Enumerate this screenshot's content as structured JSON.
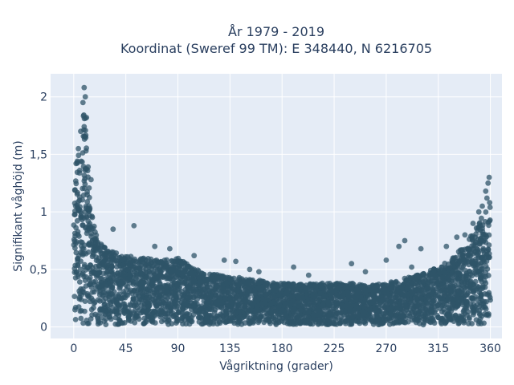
{
  "chart_data": {
    "type": "scatter",
    "title_line1": "År 1979 - 2019",
    "title_line2": "Koordinat (Sweref 99 TM): E 348440, N 6216705",
    "xlabel": "Vågriktning (grader)",
    "ylabel": "Signifikant våghöjd (m)",
    "xlim": [
      -20,
      370
    ],
    "ylim": [
      -0.1,
      2.2
    ],
    "x_ticks": [
      0,
      45,
      90,
      135,
      180,
      225,
      270,
      315,
      360
    ],
    "x_tick_labels": [
      "0",
      "45",
      "90",
      "135",
      "180",
      "225",
      "270",
      "315",
      "360"
    ],
    "y_ticks": [
      0,
      0.5,
      1,
      1.5,
      2
    ],
    "y_tick_labels": [
      "0",
      "0,5",
      "1",
      "1,5",
      "2"
    ],
    "grid": true,
    "plot_bgcolor": "#e5ecf6",
    "marker_color": "#2f5468",
    "upper_envelope": {
      "x": [
        0,
        3,
        6,
        8,
        10,
        12,
        15,
        20,
        25,
        30,
        40,
        45,
        60,
        75,
        90,
        105,
        120,
        135,
        150,
        165,
        180,
        195,
        210,
        225,
        240,
        255,
        270,
        285,
        300,
        315,
        325,
        330,
        335,
        340,
        345,
        350,
        355,
        358,
        360
      ],
      "y": [
        1.35,
        1.5,
        1.7,
        1.85,
        1.9,
        1.45,
        1.0,
        0.78,
        0.72,
        0.68,
        0.64,
        0.62,
        0.6,
        0.58,
        0.6,
        0.5,
        0.46,
        0.44,
        0.42,
        0.4,
        0.38,
        0.37,
        0.38,
        0.38,
        0.38,
        0.36,
        0.38,
        0.42,
        0.46,
        0.52,
        0.58,
        0.62,
        0.7,
        0.76,
        0.82,
        0.9,
        1.0,
        1.08,
        1.1
      ]
    },
    "outliers": [
      {
        "x": 9,
        "y": 2.08
      },
      {
        "x": 10,
        "y": 2.0
      },
      {
        "x": 8,
        "y": 1.95
      },
      {
        "x": 11,
        "y": 1.82
      },
      {
        "x": 6,
        "y": 1.7
      },
      {
        "x": 4,
        "y": 1.55
      },
      {
        "x": 15,
        "y": 1.28
      },
      {
        "x": 2,
        "y": 1.42
      },
      {
        "x": 34,
        "y": 0.85
      },
      {
        "x": 52,
        "y": 0.88
      },
      {
        "x": 70,
        "y": 0.7
      },
      {
        "x": 83,
        "y": 0.68
      },
      {
        "x": 104,
        "y": 0.62
      },
      {
        "x": 130,
        "y": 0.58
      },
      {
        "x": 140,
        "y": 0.57
      },
      {
        "x": 152,
        "y": 0.5
      },
      {
        "x": 160,
        "y": 0.48
      },
      {
        "x": 190,
        "y": 0.52
      },
      {
        "x": 203,
        "y": 0.45
      },
      {
        "x": 240,
        "y": 0.55
      },
      {
        "x": 252,
        "y": 0.48
      },
      {
        "x": 270,
        "y": 0.58
      },
      {
        "x": 281,
        "y": 0.7
      },
      {
        "x": 286,
        "y": 0.75
      },
      {
        "x": 292,
        "y": 0.52
      },
      {
        "x": 300,
        "y": 0.68
      },
      {
        "x": 322,
        "y": 0.7
      },
      {
        "x": 331,
        "y": 0.78
      },
      {
        "x": 338,
        "y": 0.8
      },
      {
        "x": 345,
        "y": 0.9
      },
      {
        "x": 350,
        "y": 1.0
      },
      {
        "x": 356,
        "y": 1.18
      },
      {
        "x": 358,
        "y": 1.25
      },
      {
        "x": 359,
        "y": 1.3
      },
      {
        "x": 357,
        "y": 1.12
      },
      {
        "x": 353,
        "y": 1.05
      }
    ]
  }
}
